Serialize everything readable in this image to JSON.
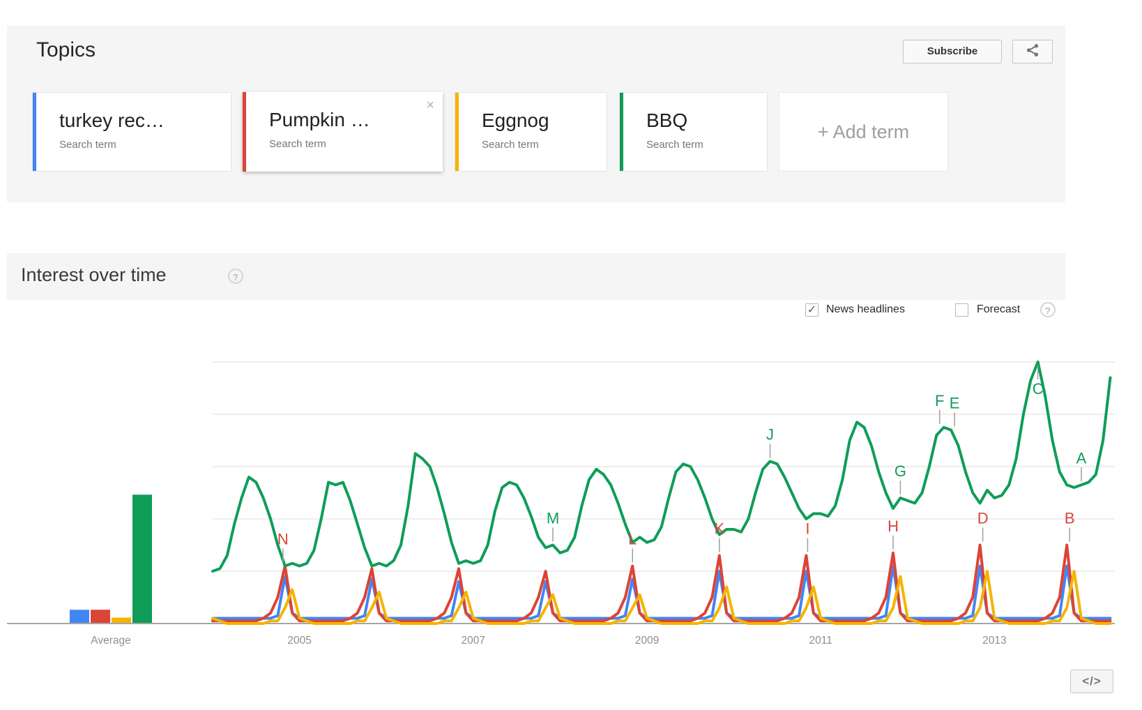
{
  "topics": {
    "title": "Topics",
    "subscribe_label": "Subscribe",
    "add_term_label": "+ Add term",
    "terms": [
      {
        "label": "turkey rec…",
        "type": "Search term",
        "color": "#4285f4",
        "closable": false
      },
      {
        "label": "Pumpkin …",
        "type": "Search term",
        "color": "#db4437",
        "closable": true
      },
      {
        "label": "Eggnog",
        "type": "Search term",
        "color": "#f4b400",
        "closable": false
      },
      {
        "label": "BBQ",
        "type": "Search term",
        "color": "#0f9d58",
        "closable": false
      }
    ]
  },
  "interest": {
    "title": "Interest over time",
    "news_headlines_label": "News headlines",
    "news_headlines_checked": true,
    "check_glyph": "✓",
    "forecast_label": "Forecast",
    "forecast_checked": false,
    "help_glyph": "?"
  },
  "embed_button_label": "</>",
  "chart_data": {
    "type": "line",
    "title": "Interest over time",
    "x_start": "2004-01",
    "x_end": "2014-05",
    "ylim": [
      0,
      100
    ],
    "gridline_values": [
      20,
      40,
      60,
      80,
      100
    ],
    "grid": true,
    "legend_position": "none",
    "average_label": "Average",
    "x_ticks": [
      {
        "label": "2005",
        "month_index": 12
      },
      {
        "label": "2007",
        "month_index": 36
      },
      {
        "label": "2009",
        "month_index": 60
      },
      {
        "label": "2011",
        "month_index": 84
      },
      {
        "label": "2013",
        "month_index": 108
      }
    ],
    "series": [
      {
        "name": "turkey rec…",
        "color": "#4285f4",
        "average": 5,
        "monthly": [
          2,
          2,
          2,
          2,
          2,
          2,
          2,
          2,
          2,
          3,
          18,
          4,
          2,
          2,
          2,
          2,
          2,
          2,
          2,
          2,
          2,
          3,
          17,
          4,
          2,
          2,
          2,
          2,
          2,
          2,
          2,
          2,
          2,
          3,
          16,
          4,
          2,
          2,
          2,
          2,
          2,
          2,
          2,
          2,
          2,
          3,
          16,
          4,
          2,
          2,
          2,
          2,
          2,
          2,
          2,
          2,
          2,
          3,
          17,
          4,
          2,
          2,
          2,
          2,
          2,
          2,
          2,
          2,
          2,
          3,
          20,
          4,
          2,
          2,
          2,
          2,
          2,
          2,
          2,
          2,
          2,
          3,
          20,
          4,
          2,
          2,
          2,
          2,
          2,
          2,
          2,
          2,
          2,
          3,
          22,
          4,
          2,
          2,
          2,
          2,
          2,
          2,
          2,
          2,
          2,
          3,
          22,
          4,
          2,
          2,
          2,
          2,
          2,
          2,
          2,
          2,
          2,
          3,
          22,
          4,
          2,
          2,
          2,
          2,
          2
        ]
      },
      {
        "name": "Pumpkin …",
        "color": "#db4437",
        "average": 5,
        "monthly": [
          1,
          1,
          1,
          1,
          1,
          1,
          1,
          2,
          4,
          10,
          22,
          4,
          1,
          1,
          1,
          1,
          1,
          1,
          1,
          2,
          4,
          10,
          21,
          4,
          1,
          1,
          1,
          1,
          1,
          1,
          1,
          2,
          4,
          10,
          21,
          4,
          1,
          1,
          1,
          1,
          1,
          1,
          1,
          2,
          4,
          10,
          20,
          4,
          1,
          1,
          1,
          1,
          1,
          1,
          1,
          2,
          4,
          10,
          22,
          4,
          1,
          1,
          1,
          1,
          1,
          1,
          1,
          2,
          4,
          10,
          26,
          4,
          1,
          1,
          1,
          1,
          1,
          1,
          1,
          2,
          4,
          10,
          26,
          4,
          1,
          1,
          1,
          1,
          1,
          1,
          1,
          2,
          4,
          10,
          27,
          4,
          1,
          1,
          1,
          1,
          1,
          1,
          1,
          2,
          4,
          10,
          30,
          4,
          1,
          1,
          1,
          1,
          1,
          1,
          1,
          2,
          4,
          10,
          30,
          4,
          1,
          1,
          1,
          1,
          1
        ]
      },
      {
        "name": "Eggnog",
        "color": "#f4b400",
        "average": 2,
        "monthly": [
          2,
          1,
          0,
          0,
          0,
          0,
          0,
          0,
          1,
          1,
          6,
          13,
          2,
          1,
          0,
          0,
          0,
          0,
          0,
          0,
          1,
          1,
          6,
          12,
          2,
          1,
          0,
          0,
          0,
          0,
          0,
          0,
          1,
          1,
          6,
          12,
          2,
          1,
          0,
          0,
          0,
          0,
          0,
          0,
          1,
          1,
          6,
          11,
          2,
          1,
          0,
          0,
          0,
          0,
          0,
          0,
          1,
          1,
          6,
          11,
          2,
          1,
          0,
          0,
          0,
          0,
          0,
          0,
          1,
          1,
          6,
          14,
          2,
          1,
          0,
          0,
          0,
          0,
          0,
          0,
          1,
          1,
          6,
          14,
          2,
          1,
          0,
          0,
          0,
          0,
          0,
          0,
          1,
          1,
          6,
          18,
          2,
          1,
          0,
          0,
          0,
          0,
          0,
          0,
          1,
          1,
          6,
          20,
          2,
          1,
          0,
          0,
          0,
          0,
          0,
          0,
          1,
          1,
          6,
          20,
          2,
          1,
          0,
          0,
          0
        ]
      },
      {
        "name": "BBQ",
        "color": "#0f9d58",
        "average": 49,
        "monthly": [
          20,
          21,
          26,
          38,
          48,
          56,
          54,
          48,
          40,
          30,
          22,
          23,
          22,
          23,
          28,
          40,
          54,
          53,
          54,
          47,
          38,
          29,
          22,
          23,
          22,
          24,
          30,
          45,
          65,
          63,
          60,
          52,
          42,
          31,
          23,
          24,
          23,
          24,
          30,
          43,
          52,
          54,
          53,
          48,
          41,
          33,
          29,
          30,
          27,
          28,
          33,
          45,
          55,
          59,
          57,
          53,
          46,
          38,
          31,
          33,
          31,
          32,
          37,
          48,
          58,
          61,
          60,
          55,
          48,
          40,
          34,
          36,
          36,
          35,
          40,
          50,
          59,
          62,
          61,
          56,
          50,
          44,
          40,
          42,
          42,
          41,
          45,
          55,
          70,
          77,
          75,
          68,
          58,
          50,
          44,
          48,
          47,
          46,
          50,
          60,
          72,
          75,
          74,
          68,
          58,
          50,
          46,
          51,
          48,
          49,
          53,
          63,
          80,
          93,
          100,
          87,
          70,
          58,
          53,
          52,
          53,
          54,
          57,
          70,
          94
        ]
      }
    ],
    "annotations": [
      {
        "letter": "A",
        "series": "BBQ",
        "month_index": 120,
        "value": 53,
        "dx": 0
      },
      {
        "letter": "B",
        "series": "Pumpkin …",
        "month_index": 118,
        "value": 30,
        "dx": 4
      },
      {
        "letter": "C",
        "series": "BBQ",
        "month_index": 114,
        "value": 100,
        "dx": 0
      },
      {
        "letter": "D",
        "series": "Pumpkin …",
        "month_index": 106,
        "value": 30,
        "dx": 4
      },
      {
        "letter": "E",
        "series": "BBQ",
        "month_index": 102,
        "value": 74,
        "dx": 5
      },
      {
        "letter": "F",
        "series": "BBQ",
        "month_index": 101,
        "value": 75,
        "dx": -6
      },
      {
        "letter": "G",
        "series": "BBQ",
        "month_index": 95,
        "value": 48,
        "dx": 0
      },
      {
        "letter": "H",
        "series": "Pumpkin …",
        "month_index": 94,
        "value": 27,
        "dx": 0
      },
      {
        "letter": "I",
        "series": "Pumpkin …",
        "month_index": 82,
        "value": 26,
        "dx": 2
      },
      {
        "letter": "J",
        "series": "BBQ",
        "month_index": 77,
        "value": 62,
        "dx": 0
      },
      {
        "letter": "K",
        "series": "Pumpkin …",
        "month_index": 70,
        "value": 26,
        "dx": 0
      },
      {
        "letter": "L",
        "series": "Pumpkin …",
        "month_index": 58,
        "value": 22,
        "dx": 0
      },
      {
        "letter": "M",
        "series": "BBQ",
        "month_index": 47,
        "value": 30,
        "dx": 0
      },
      {
        "letter": "N",
        "series": "Pumpkin …",
        "month_index": 10,
        "value": 22,
        "dx": -3
      }
    ]
  }
}
